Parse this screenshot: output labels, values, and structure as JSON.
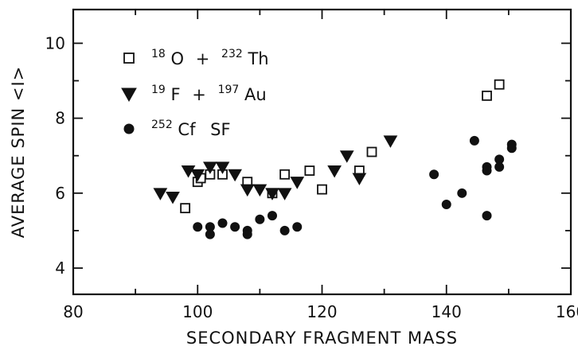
{
  "chart_data": {
    "type": "scatter",
    "xlabel": "SECONDARY FRAGMENT MASS",
    "ylabel": "AVERAGE SPIN <I>",
    "xlim": [
      80,
      160
    ],
    "ylim": [
      3.3,
      10.9
    ],
    "x_ticks": [
      80,
      100,
      120,
      140,
      160
    ],
    "y_ticks": [
      4,
      6,
      8,
      10
    ],
    "grid": false,
    "legend_position": "top-left",
    "series": [
      {
        "name": "18O + 232Th",
        "label_parts": {
          "m1": "18",
          "e1": "O",
          "op1": "+",
          "m2": "232",
          "e2": "Th"
        },
        "marker": "open-square",
        "points": [
          [
            98,
            5.6
          ],
          [
            100,
            6.3
          ],
          [
            100.5,
            6.4
          ],
          [
            102,
            6.5
          ],
          [
            104,
            6.5
          ],
          [
            108,
            6.3
          ],
          [
            112,
            6.0
          ],
          [
            114,
            6.5
          ],
          [
            118,
            6.6
          ],
          [
            120,
            6.1
          ],
          [
            126,
            6.6
          ],
          [
            128,
            7.1
          ],
          [
            146.5,
            8.6
          ],
          [
            148.5,
            8.9
          ]
        ]
      },
      {
        "name": "19F + 197Au",
        "label_parts": {
          "m1": "19",
          "e1": "F",
          "op1": "+",
          "m2": "197",
          "e2": "Au"
        },
        "marker": "filled-triangle-down",
        "points": [
          [
            94,
            6.0
          ],
          [
            96,
            5.9
          ],
          [
            98.5,
            6.6
          ],
          [
            100,
            6.5
          ],
          [
            102,
            6.7
          ],
          [
            104,
            6.7
          ],
          [
            106,
            6.5
          ],
          [
            108,
            6.1
          ],
          [
            110,
            6.1
          ],
          [
            112,
            6.0
          ],
          [
            114,
            6.0
          ],
          [
            116,
            6.3
          ],
          [
            122,
            6.6
          ],
          [
            124,
            7.0
          ],
          [
            126,
            6.4
          ],
          [
            131,
            7.4
          ]
        ]
      },
      {
        "name": "252Cf SF",
        "label_parts": {
          "m1": "252",
          "e1": "Cf",
          "e2": "SF"
        },
        "marker": "filled-circle",
        "points": [
          [
            100,
            5.1
          ],
          [
            102,
            5.1
          ],
          [
            102,
            4.9
          ],
          [
            104,
            5.2
          ],
          [
            106,
            5.1
          ],
          [
            108,
            5.0
          ],
          [
            108,
            4.9
          ],
          [
            110,
            5.3
          ],
          [
            112,
            5.4
          ],
          [
            114,
            5.0
          ],
          [
            116,
            5.1
          ],
          [
            138,
            6.5
          ],
          [
            140,
            5.7
          ],
          [
            142.5,
            6.0
          ],
          [
            144.5,
            7.4
          ],
          [
            146.5,
            6.7
          ],
          [
            146.5,
            6.6
          ],
          [
            146.5,
            5.4
          ],
          [
            148.5,
            6.9
          ],
          [
            148.5,
            6.7
          ],
          [
            150.5,
            7.3
          ],
          [
            150.5,
            7.2
          ]
        ]
      }
    ]
  }
}
